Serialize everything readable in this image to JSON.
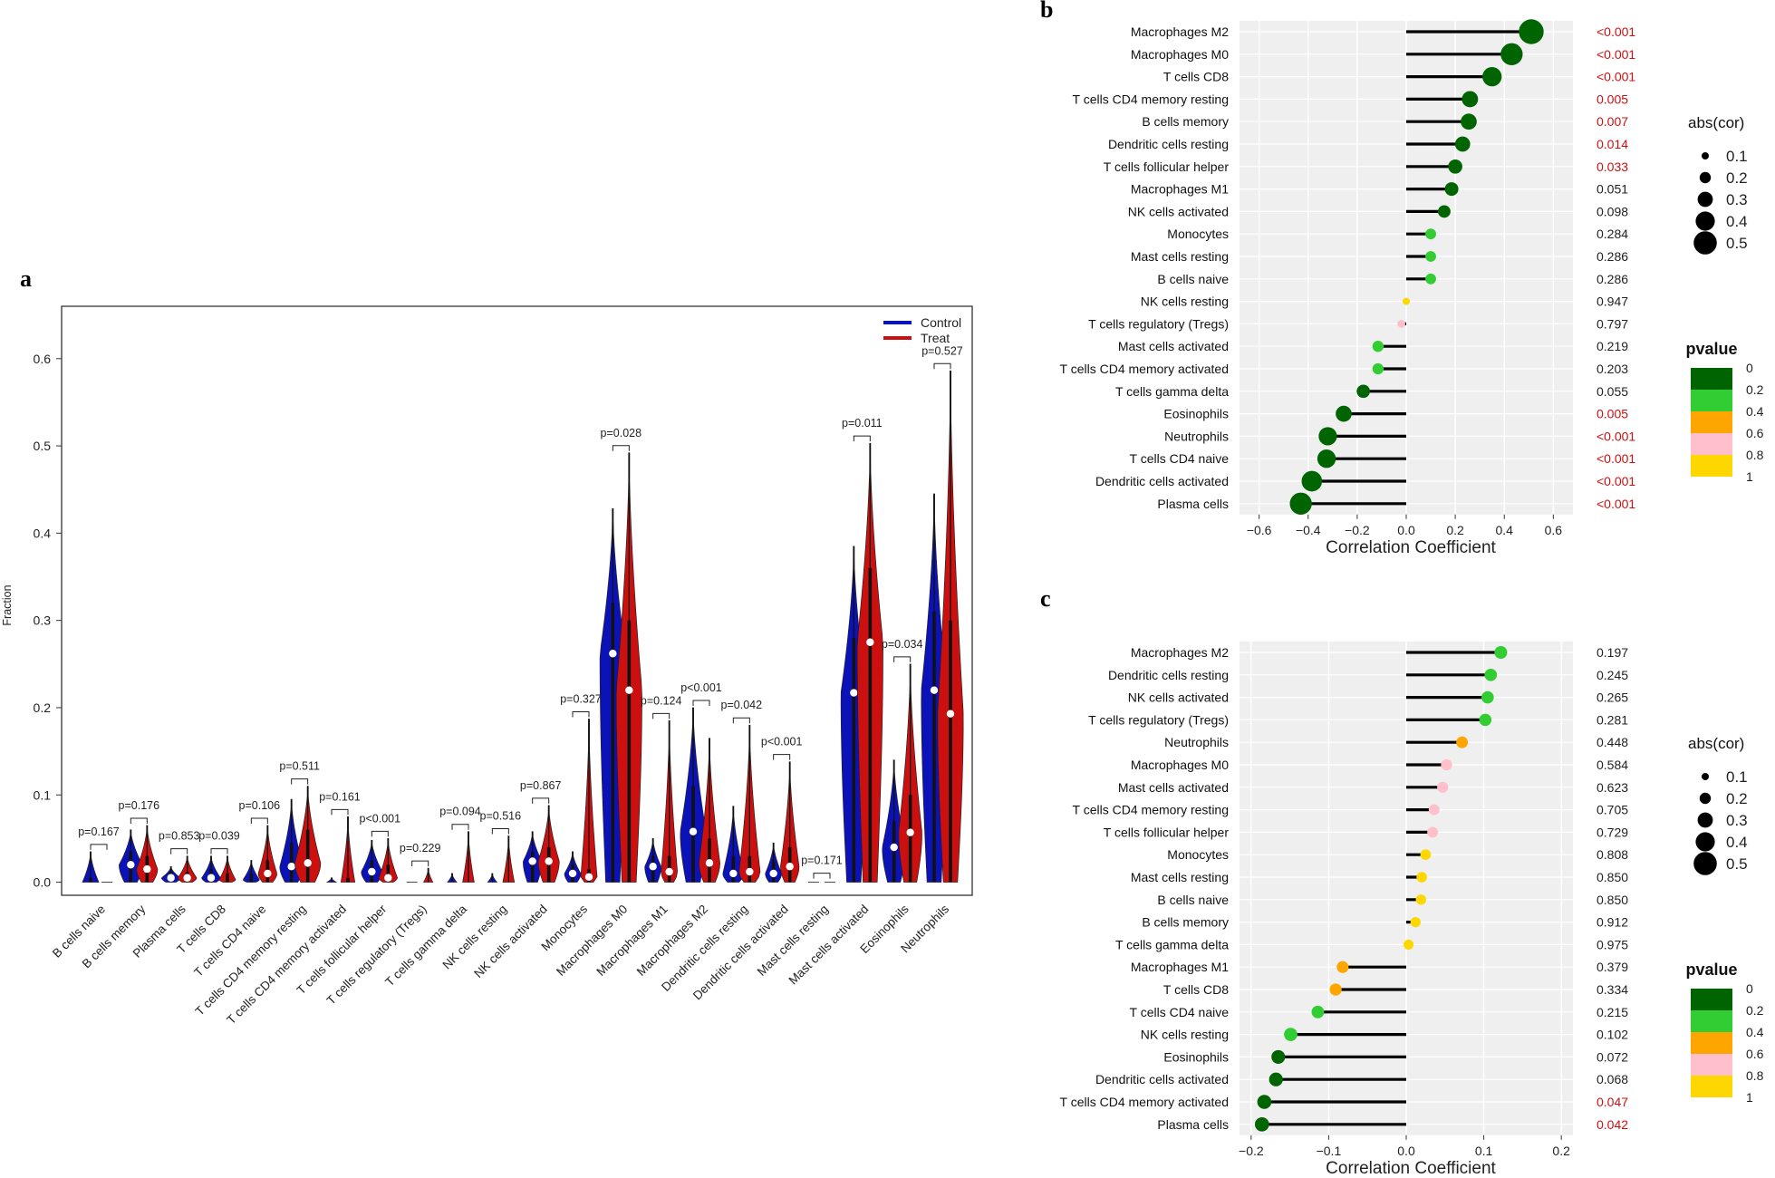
{
  "colors": {
    "control": "#0b12b8",
    "treat": "#cc0f0f",
    "sig_text": "#cc1010",
    "ns_text": "#222222",
    "grid_bg": "#efefef",
    "scale": [
      "#006400",
      "#32cd32",
      "#ffa500",
      "#ffc0cb",
      "#ffd700"
    ]
  },
  "panels": {
    "a": {
      "letter": "a"
    },
    "b": {
      "letter": "b"
    },
    "c": {
      "letter": "c"
    }
  },
  "chart_data": [
    {
      "id": "a",
      "type": "violin",
      "title": "",
      "xlabel": "",
      "ylabel": "Fraction",
      "ylim": [
        -0.015,
        0.66
      ],
      "yticks": [
        "0.0",
        "0.1",
        "0.2",
        "0.3",
        "0.4",
        "0.5",
        "0.6"
      ],
      "legend": {
        "position": "top-right",
        "entries": [
          "Control",
          "Treat"
        ]
      },
      "categories": [
        "B cells naive",
        "B cells memory",
        "Plasma cells",
        "T cells CD8",
        "T cells CD4 naive",
        "T cells CD4 memory resting",
        "T cells CD4 memory activated",
        "T cells follicular helper",
        "T cells regulatory (Tregs)",
        "T cells gamma delta",
        "NK cells resting",
        "NK cells activated",
        "Monocytes",
        "Macrophages M0",
        "Macrophages M1",
        "Macrophages M2",
        "Dendritic cells resting",
        "Dendritic cells activated",
        "Mast cells resting",
        "Mast cells activated",
        "Eosinophils",
        "Neutrophils"
      ],
      "pvalues": [
        "p=0.167",
        "p=0.176",
        "p=0.853",
        "p=0.039",
        "p=0.106",
        "p=0.511",
        "p=0.161",
        "p<0.001",
        "p=0.229",
        "p=0.094",
        "p=0.516",
        "p=0.867",
        "p=0.327",
        "p=0.028",
        "p=0.124",
        "p<0.001",
        "p=0.042",
        "p<0.001",
        "p=0.171",
        "p=0.011",
        "p=0.034",
        "p=0.527"
      ],
      "series": [
        {
          "name": "Control",
          "max": [
            0.035,
            0.06,
            0.018,
            0.03,
            0.025,
            0.095,
            0.005,
            0.048,
            0.0,
            0.01,
            0.01,
            0.058,
            0.035,
            0.428,
            0.05,
            0.2,
            0.087,
            0.045,
            0.002,
            0.385,
            0.14,
            0.445
          ],
          "median": [
            0.0,
            0.02,
            0.005,
            0.005,
            0.003,
            0.018,
            0.0,
            0.012,
            0.0,
            0.0,
            0.0,
            0.024,
            0.01,
            0.262,
            0.018,
            0.058,
            0.01,
            0.01,
            0.0,
            0.217,
            0.04,
            0.22
          ],
          "upper_box": [
            0.005,
            0.035,
            0.012,
            0.015,
            0.01,
            0.045,
            0.002,
            0.025,
            0.0,
            0.002,
            0.002,
            0.035,
            0.02,
            0.32,
            0.03,
            0.11,
            0.03,
            0.025,
            0.0,
            0.28,
            0.07,
            0.31
          ],
          "width": [
            0.6,
            0.9,
            0.7,
            0.7,
            0.6,
            0.9,
            0.3,
            0.8,
            0.2,
            0.3,
            0.3,
            0.7,
            0.6,
            1.0,
            0.6,
            1.0,
            0.8,
            0.6,
            0.2,
            1.0,
            0.9,
            1.0
          ]
        },
        {
          "name": "Treat",
          "max": [
            0.0,
            0.065,
            0.03,
            0.03,
            0.065,
            0.11,
            0.075,
            0.05,
            0.016,
            0.058,
            0.053,
            0.088,
            0.187,
            0.492,
            0.185,
            0.165,
            0.18,
            0.138,
            0.002,
            0.503,
            0.25,
            0.586
          ],
          "median": [
            0.0,
            0.015,
            0.005,
            0.003,
            0.01,
            0.022,
            0.0,
            0.005,
            0.0,
            0.0,
            0.0,
            0.024,
            0.006,
            0.22,
            0.012,
            0.022,
            0.012,
            0.018,
            0.0,
            0.275,
            0.057,
            0.193
          ],
          "upper_box": [
            0.0,
            0.03,
            0.012,
            0.01,
            0.025,
            0.06,
            0.005,
            0.02,
            0.002,
            0.004,
            0.004,
            0.04,
            0.015,
            0.3,
            0.03,
            0.05,
            0.03,
            0.04,
            0.0,
            0.36,
            0.1,
            0.3
          ],
          "width": [
            0.1,
            0.8,
            0.7,
            0.6,
            0.7,
            1.0,
            0.5,
            0.7,
            0.3,
            0.4,
            0.4,
            0.8,
            0.6,
            1.0,
            0.6,
            0.8,
            0.8,
            0.7,
            0.2,
            1.0,
            0.9,
            1.0
          ]
        }
      ]
    },
    {
      "id": "b",
      "type": "lollipop",
      "title": "",
      "xlabel": "Correlation Coefficient",
      "ylabel": "",
      "xlim": [
        -0.68,
        0.68
      ],
      "xticks": [
        -0.6,
        -0.4,
        -0.2,
        0.0,
        0.2,
        0.4,
        0.6
      ],
      "xtick_labels": [
        "−0.6",
        "−0.4",
        "−0.2",
        "0.0",
        "0.2",
        "0.4",
        "0.6"
      ],
      "labels": [
        "Macrophages M2",
        "Macrophages M0",
        "T cells CD8",
        "T cells CD4 memory resting",
        "B cells memory",
        "Dendritic cells resting",
        "T cells follicular helper",
        "Macrophages M1",
        "NK cells activated",
        "Monocytes",
        "Mast cells resting",
        "B cells naive",
        "NK cells resting",
        "T cells regulatory (Tregs)",
        "Mast cells activated",
        "T cells CD4 memory activated",
        "T cells gamma delta",
        "Eosinophils",
        "Neutrophils",
        "T cells CD4 naive",
        "Dendritic cells activated",
        "Plasma cells"
      ],
      "values": [
        0.51,
        0.43,
        0.35,
        0.26,
        0.255,
        0.23,
        0.2,
        0.185,
        0.155,
        0.1,
        0.1,
        0.1,
        0.0,
        -0.02,
        -0.115,
        -0.115,
        -0.175,
        -0.255,
        -0.32,
        -0.325,
        -0.385,
        -0.43
      ],
      "pvalue_text": [
        "<0.001",
        "<0.001",
        "<0.001",
        "0.005",
        "0.007",
        "0.014",
        "0.033",
        "0.051",
        "0.098",
        "0.284",
        "0.286",
        "0.286",
        "0.947",
        "0.797",
        "0.219",
        "0.203",
        "0.055",
        "0.005",
        "<0.001",
        "<0.001",
        "<0.001",
        "<0.001"
      ],
      "pvalues": [
        0.0005,
        0.0005,
        0.0005,
        0.005,
        0.007,
        0.014,
        0.033,
        0.051,
        0.098,
        0.284,
        0.286,
        0.286,
        0.947,
        0.797,
        0.219,
        0.203,
        0.055,
        0.005,
        0.0005,
        0.0005,
        0.0005,
        0.0005
      ],
      "size_legend": {
        "title": "abs(cor)",
        "entries": [
          "0.1",
          "0.2",
          "0.3",
          "0.4",
          "0.5"
        ]
      },
      "color_legend": {
        "title": "pvalue",
        "labels": [
          "0",
          "0.2",
          "0.4",
          "0.6",
          "0.8",
          "1"
        ]
      }
    },
    {
      "id": "c",
      "type": "lollipop",
      "title": "",
      "xlabel": "Correlation Coefficient",
      "ylabel": "",
      "xlim": [
        -0.215,
        0.215
      ],
      "xticks": [
        -0.2,
        -0.1,
        0.0,
        0.1,
        0.2
      ],
      "xtick_labels": [
        "−0.2",
        "−0.1",
        "0.0",
        "0.1",
        "0.2"
      ],
      "labels": [
        "Macrophages M2",
        "Dendritic cells resting",
        "NK cells activated",
        "T cells regulatory (Tregs)",
        "Neutrophils",
        "Macrophages M0",
        "Mast cells activated",
        "T cells CD4 memory resting",
        "T cells follicular helper",
        "Monocytes",
        "Mast cells resting",
        "B cells naive",
        "B cells memory",
        "T cells gamma delta",
        "Macrophages M1",
        "T cells CD8",
        "T cells CD4 naive",
        "NK cells resting",
        "Eosinophils",
        "Dendritic cells activated",
        "T cells CD4 memory activated",
        "Plasma cells"
      ],
      "values": [
        0.122,
        0.109,
        0.105,
        0.102,
        0.072,
        0.052,
        0.047,
        0.036,
        0.034,
        0.025,
        0.02,
        0.019,
        0.012,
        0.003,
        -0.082,
        -0.091,
        -0.114,
        -0.149,
        -0.165,
        -0.168,
        -0.183,
        -0.186
      ],
      "pvalue_text": [
        "0.197",
        "0.245",
        "0.265",
        "0.281",
        "0.448",
        "0.584",
        "0.623",
        "0.705",
        "0.729",
        "0.808",
        "0.850",
        "0.850",
        "0.912",
        "0.975",
        "0.379",
        "0.334",
        "0.215",
        "0.102",
        "0.072",
        "0.068",
        "0.047",
        "0.042"
      ],
      "pvalues": [
        0.197,
        0.245,
        0.265,
        0.281,
        0.448,
        0.584,
        0.623,
        0.705,
        0.729,
        0.808,
        0.85,
        0.85,
        0.912,
        0.975,
        0.379,
        0.334,
        0.215,
        0.102,
        0.072,
        0.068,
        0.047,
        0.042
      ],
      "size_legend": {
        "title": "abs(cor)",
        "entries": [
          "0.1",
          "0.2",
          "0.3",
          "0.4",
          "0.5"
        ]
      },
      "color_legend": {
        "title": "pvalue",
        "labels": [
          "0",
          "0.2",
          "0.4",
          "0.6",
          "0.8",
          "1"
        ]
      }
    }
  ]
}
